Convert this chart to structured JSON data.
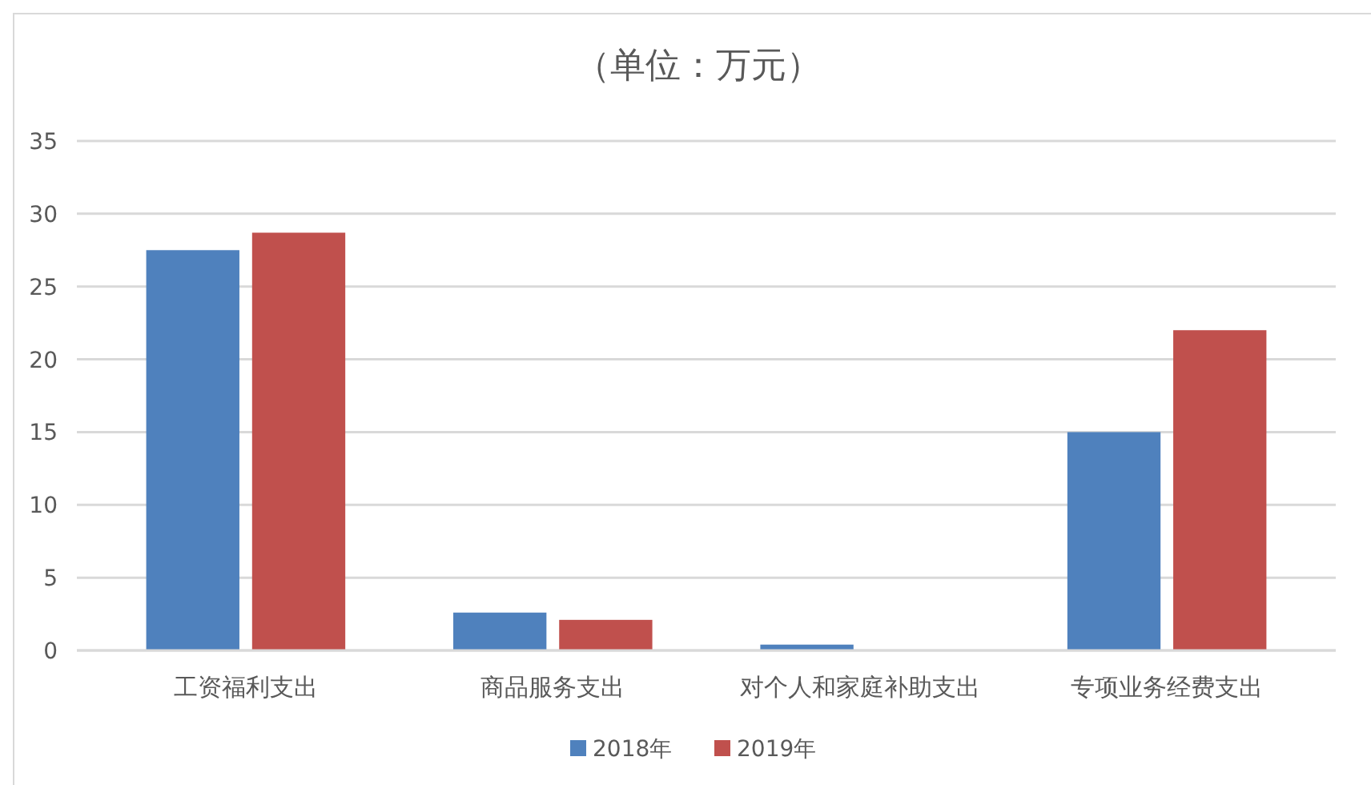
{
  "chart_data": {
    "type": "bar",
    "title": "（单位：万元）",
    "categories": [
      "工资福利支出",
      "商品服务支出",
      "对个人和家庭补助支出",
      "专项业务经费支出"
    ],
    "series": [
      {
        "name": "2018年",
        "color": "#4f81bd",
        "values": [
          27.5,
          2.6,
          0.4,
          15.0
        ]
      },
      {
        "name": "2019年",
        "color": "#c0504d",
        "values": [
          28.7,
          2.1,
          0,
          22.0
        ]
      }
    ],
    "ylim": [
      0,
      35
    ],
    "yticks": [
      0,
      5,
      10,
      15,
      20,
      25,
      30,
      35
    ],
    "grid": "y",
    "legend": "bottom"
  }
}
